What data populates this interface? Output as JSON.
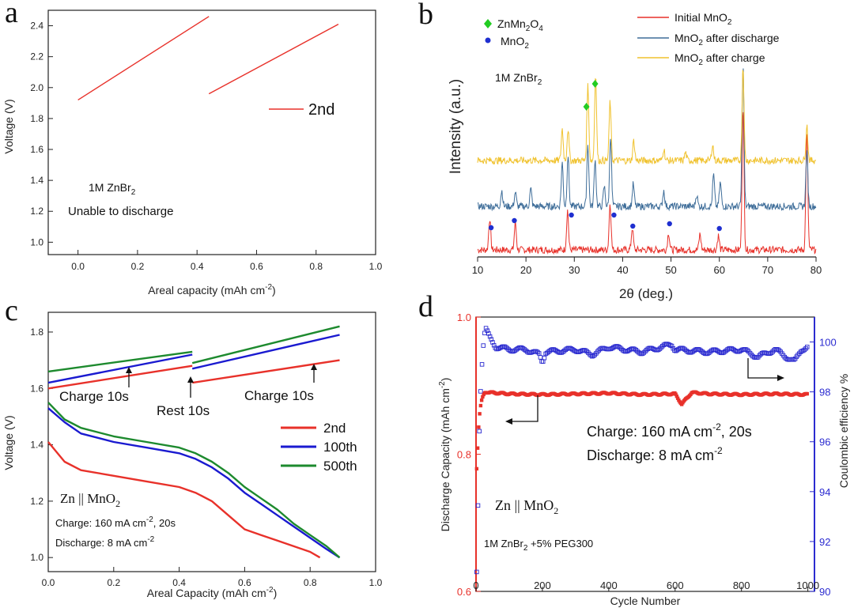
{
  "figure": {
    "panel_labels": [
      "a",
      "b",
      "c",
      "d"
    ]
  },
  "chart_data": [
    {
      "panel": "a",
      "type": "line",
      "xlabel": "Areal capacity (mAh cm",
      "xlabel_sup": "-2",
      "xlabel_end": ")",
      "ylabel": "Voltage (V)",
      "xlim": [
        -0.1,
        1.0
      ],
      "ylim": [
        0.92,
        2.5
      ],
      "xticks": [
        "0.0",
        "0.2",
        "0.4",
        "0.6",
        "0.8",
        "1.0"
      ],
      "yticks": [
        "1.0",
        "1.2",
        "1.4",
        "1.6",
        "1.8",
        "2.0",
        "2.2",
        "2.4"
      ],
      "color": "#e8312a",
      "segments": [
        {
          "x": [
            0.0,
            0.44
          ],
          "y": [
            1.92,
            2.46
          ]
        },
        {
          "x": [
            0.44,
            0.875
          ],
          "y": [
            1.96,
            2.41
          ]
        }
      ],
      "legend": [
        "2nd"
      ],
      "annotation_electrolyte": "1M ZnBr",
      "annotation_electrolyte_sub": "2",
      "annotation_note": "Unable to discharge"
    },
    {
      "panel": "b",
      "type": "line",
      "xlabel": "2θ (deg.)",
      "ylabel": "Intensity (a.u.)",
      "xlim": [
        10,
        80
      ],
      "xticks": [
        "10",
        "20",
        "30",
        "40",
        "50",
        "60",
        "70",
        "80"
      ],
      "annotation_electrolyte": "1M ZnBr",
      "annotation_electrolyte_sub": "2",
      "phase_legend": [
        {
          "label": "ZnMn",
          "sub1": "2",
          "mid": "O",
          "sub2": "4",
          "color": "#22cc22",
          "marker": "diamond"
        },
        {
          "label": "MnO",
          "sub1": "2",
          "mid": "",
          "sub2": "",
          "color": "#1f2fd0",
          "marker": "circle"
        }
      ],
      "series": [
        {
          "name": "Initial MnO",
          "sub": "2",
          "tail": "",
          "color": "#e8312a",
          "offset": 0,
          "peaks": [
            [
              12.5,
              40
            ],
            [
              17.8,
              35
            ],
            [
              28.6,
              50
            ],
            [
              37.4,
              60
            ],
            [
              42.0,
              28
            ],
            [
              49.5,
              22
            ],
            [
              56.0,
              20
            ],
            [
              59.8,
              18
            ],
            [
              64.9,
              180
            ],
            [
              78.1,
              150
            ]
          ]
        },
        {
          "name": "MnO",
          "sub": "2",
          "tail": " after discharge",
          "color": "#3e6d99",
          "offset": 55,
          "peaks": [
            [
              15.0,
              20
            ],
            [
              17.8,
              18
            ],
            [
              21.0,
              22
            ],
            [
              27.5,
              55
            ],
            [
              28.7,
              65
            ],
            [
              32.8,
              80
            ],
            [
              34.3,
              60
            ],
            [
              36.2,
              25
            ],
            [
              37.5,
              90
            ],
            [
              42.2,
              28
            ],
            [
              48.5,
              20
            ],
            [
              55.3,
              15
            ],
            [
              58.8,
              40
            ],
            [
              60.2,
              30
            ],
            [
              64.9,
              180
            ],
            [
              78.1,
              70
            ]
          ]
        },
        {
          "name": "MnO",
          "sub": "2",
          "tail": " after charge",
          "color": "#f0c22e",
          "offset": 113,
          "peaks": [
            [
              27.5,
              40
            ],
            [
              28.7,
              40
            ],
            [
              32.8,
              95
            ],
            [
              34.4,
              110
            ],
            [
              37.4,
              75
            ],
            [
              42.3,
              25
            ],
            [
              48.5,
              15
            ],
            [
              53.0,
              10
            ],
            [
              58.6,
              20
            ],
            [
              64.9,
              120
            ],
            [
              78.1,
              45
            ]
          ]
        }
      ],
      "markers": {
        "diamond": [
          32.5,
          34.3
        ],
        "circle": [
          12.8,
          17.6,
          29.4,
          38.2,
          42.1,
          49.7,
          60.0
        ]
      }
    },
    {
      "panel": "c",
      "type": "line",
      "xlabel": "Areal Capacity (mAh cm",
      "xlabel_sup": "-2",
      "xlabel_end": ")",
      "ylabel": "Voltage (V)",
      "xlim": [
        0.0,
        1.0
      ],
      "ylim": [
        0.95,
        1.87
      ],
      "xticks": [
        "0.0",
        "0.2",
        "0.4",
        "0.6",
        "0.8",
        "1.0"
      ],
      "yticks": [
        "1.0",
        "1.2",
        "1.4",
        "1.6",
        "1.8"
      ],
      "series": [
        {
          "name": "2nd",
          "color": "#e8312a",
          "discharge": {
            "x": [
              0.0,
              0.05,
              0.1,
              0.2,
              0.3,
              0.4,
              0.45,
              0.5,
              0.55,
              0.6,
              0.65,
              0.7,
              0.75,
              0.8,
              0.83
            ],
            "y": [
              1.41,
              1.34,
              1.31,
              1.29,
              1.27,
              1.25,
              1.23,
              1.2,
              1.15,
              1.1,
              1.08,
              1.06,
              1.04,
              1.02,
              1.0
            ]
          },
          "charge1": {
            "x": [
              0.0,
              0.44
            ],
            "y": [
              1.6,
              1.68
            ]
          },
          "charge2": {
            "x": [
              0.44,
              0.89
            ],
            "y": [
              1.62,
              1.7
            ]
          }
        },
        {
          "name": "100th",
          "color": "#1a1ad0",
          "discharge": {
            "x": [
              0.0,
              0.05,
              0.1,
              0.2,
              0.3,
              0.4,
              0.45,
              0.5,
              0.55,
              0.6,
              0.65,
              0.7,
              0.75,
              0.8,
              0.85,
              0.89
            ],
            "y": [
              1.53,
              1.48,
              1.44,
              1.41,
              1.39,
              1.37,
              1.35,
              1.32,
              1.28,
              1.23,
              1.19,
              1.15,
              1.11,
              1.07,
              1.03,
              1.0
            ]
          },
          "charge1": {
            "x": [
              0.0,
              0.44
            ],
            "y": [
              1.62,
              1.72
            ]
          },
          "charge2": {
            "x": [
              0.44,
              0.89
            ],
            "y": [
              1.67,
              1.79
            ]
          }
        },
        {
          "name": "500th",
          "color": "#1d8a2e",
          "discharge": {
            "x": [
              0.0,
              0.05,
              0.1,
              0.2,
              0.3,
              0.4,
              0.45,
              0.5,
              0.55,
              0.6,
              0.65,
              0.7,
              0.75,
              0.8,
              0.85,
              0.89
            ],
            "y": [
              1.55,
              1.49,
              1.46,
              1.43,
              1.41,
              1.39,
              1.37,
              1.34,
              1.3,
              1.25,
              1.21,
              1.17,
              1.12,
              1.08,
              1.04,
              1.0
            ]
          },
          "charge1": {
            "x": [
              0.0,
              0.44
            ],
            "y": [
              1.66,
              1.73
            ]
          },
          "charge2": {
            "x": [
              0.44,
              0.89
            ],
            "y": [
              1.69,
              1.82
            ]
          }
        }
      ],
      "annotations": {
        "charge_left": "Charge 10s",
        "rest": "Rest 10s",
        "charge_right": "Charge 10s",
        "cell": "Zn || MnO",
        "cell_sub": "2",
        "charge_cond": "Charge: 160 mA cm",
        "charge_cond_sup": "-2",
        "charge_cond_end": ", 20s",
        "discharge_cond": "Discharge: 8 mA cm",
        "discharge_cond_sup": "-2"
      }
    },
    {
      "panel": "d",
      "type": "scatter",
      "xlabel": "Cycle Number",
      "ylabel_left": "Discharge Capacity (mAh cm",
      "ylabel_left_sup": "-2",
      "ylabel_left_end": ")",
      "ylabel_right": "Coulombic efficiency %",
      "xlim": [
        0,
        1020
      ],
      "ylim_left": [
        0.6,
        1.0
      ],
      "ylim_right": [
        90,
        101
      ],
      "xticks": [
        "0",
        "200",
        "400",
        "600",
        "800",
        "1000"
      ],
      "yticks_left": [
        "0.6",
        "0.8",
        "1.0"
      ],
      "yticks_right": [
        "90",
        "92",
        "94",
        "96",
        "98",
        "100"
      ],
      "capacity": {
        "color": "#e8312a",
        "points": [
          [
            2,
            0.78
          ],
          [
            4,
            0.8
          ],
          [
            6,
            0.82
          ],
          [
            8,
            0.84
          ],
          [
            10,
            0.855
          ],
          [
            14,
            0.87
          ],
          [
            18,
            0.88
          ],
          [
            25,
            0.889
          ],
          [
            30,
            0.891
          ],
          [
            40,
            0.89
          ],
          [
            100,
            0.888
          ],
          [
            200,
            0.887
          ],
          [
            300,
            0.888
          ],
          [
            400,
            0.889
          ],
          [
            500,
            0.887
          ],
          [
            600,
            0.888
          ],
          [
            620,
            0.873
          ],
          [
            650,
            0.89
          ],
          [
            700,
            0.888
          ],
          [
            800,
            0.887
          ],
          [
            900,
            0.888
          ],
          [
            1000,
            0.887
          ]
        ]
      },
      "efficiency": {
        "color": "#2b2bd0",
        "points": [
          [
            2,
            90.8
          ],
          [
            4,
            91.5
          ],
          [
            6,
            93.5
          ],
          [
            8,
            95
          ],
          [
            10,
            96.5
          ],
          [
            15,
            98.5
          ],
          [
            20,
            99.6
          ],
          [
            25,
            100.3
          ],
          [
            30,
            100.5
          ],
          [
            40,
            100.2
          ],
          [
            60,
            99.8
          ],
          [
            100,
            99.7
          ],
          [
            150,
            99.7
          ],
          [
            190,
            99.5
          ],
          [
            200,
            99.2
          ],
          [
            210,
            99.6
          ],
          [
            300,
            99.7
          ],
          [
            350,
            99.5
          ],
          [
            400,
            99.8
          ],
          [
            500,
            99.6
          ],
          [
            590,
            99.9
          ],
          [
            600,
            99.7
          ],
          [
            700,
            99.6
          ],
          [
            800,
            99.7
          ],
          [
            850,
            99.4
          ],
          [
            900,
            99.7
          ],
          [
            960,
            99.2
          ],
          [
            980,
            99.7
          ],
          [
            1000,
            99.8
          ]
        ]
      },
      "annotations": {
        "charge_cond": "Charge: 160 mA cm",
        "charge_cond_sup": "-2",
        "charge_cond_end": ", 20s",
        "discharge_cond": "Discharge: 8 mA cm",
        "discharge_cond_sup": "-2",
        "cell": "Zn || MnO",
        "cell_sub": "2",
        "electrolyte": "1M ZnBr",
        "electrolyte_sub": "2",
        "electrolyte_end": " +5% PEG300"
      }
    }
  ]
}
